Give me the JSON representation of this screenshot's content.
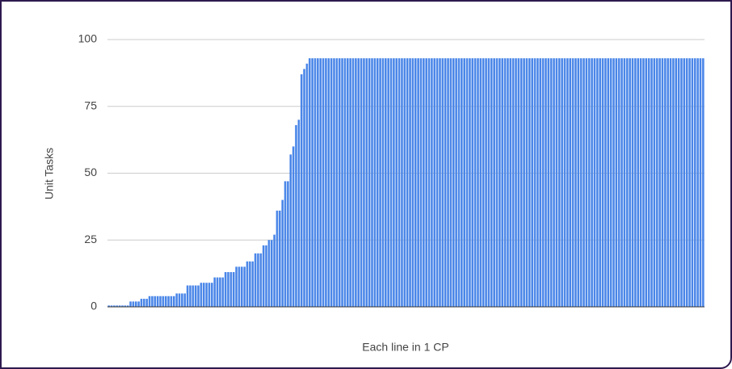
{
  "chart_data": {
    "type": "bar",
    "color": "#4a86e8",
    "grid": true,
    "y_label": "Unit Tasks",
    "x_label": "Each line in 1 CP",
    "ylim": [
      0,
      100
    ],
    "yticks": [
      0,
      25,
      50,
      75,
      100
    ],
    "values": [
      0.5,
      0.5,
      0.5,
      0.5,
      0.5,
      0.5,
      0.5,
      0.5,
      2,
      2,
      2,
      2,
      3,
      3,
      3,
      4,
      4,
      4,
      4,
      4,
      4,
      4,
      4,
      4,
      4,
      5,
      5,
      5,
      5,
      8,
      8,
      8,
      8,
      8,
      9,
      9,
      9,
      9,
      9,
      11,
      11,
      11,
      11,
      13,
      13,
      13,
      13,
      15,
      15,
      15,
      15,
      17,
      17,
      17,
      20,
      20,
      20,
      23,
      23,
      25,
      25,
      27,
      36,
      36,
      40,
      47,
      47,
      57,
      60,
      68,
      70,
      87,
      89,
      91,
      93,
      93,
      93,
      93,
      93,
      93,
      93,
      93,
      93,
      93,
      93,
      93,
      93,
      93,
      93,
      93,
      93,
      93,
      93,
      93,
      93,
      93,
      93,
      93,
      93,
      93,
      93,
      93,
      93,
      93,
      93,
      93,
      93,
      93,
      93,
      93,
      93,
      93,
      93,
      93,
      93,
      93,
      93,
      93,
      93,
      93,
      93,
      93,
      93,
      93,
      93,
      93,
      93,
      93,
      93,
      93,
      93,
      93,
      93,
      93,
      93,
      93,
      93,
      93,
      93,
      93,
      93,
      93,
      93,
      93,
      93,
      93,
      93,
      93,
      93,
      93,
      93,
      93,
      93,
      93,
      93,
      93,
      93,
      93,
      93,
      93,
      93,
      93,
      93,
      93,
      93,
      93,
      93,
      93,
      93,
      93,
      93,
      93,
      93,
      93,
      93,
      93,
      93,
      93,
      93,
      93,
      93,
      93,
      93,
      93,
      93,
      93,
      93,
      93,
      93,
      93,
      93,
      93,
      93,
      93,
      93,
      93,
      93,
      93,
      93,
      93,
      93,
      93,
      93,
      93,
      93,
      93,
      93,
      93,
      93,
      93,
      93,
      93,
      93,
      93,
      93,
      93,
      93,
      93,
      93,
      93
    ]
  }
}
